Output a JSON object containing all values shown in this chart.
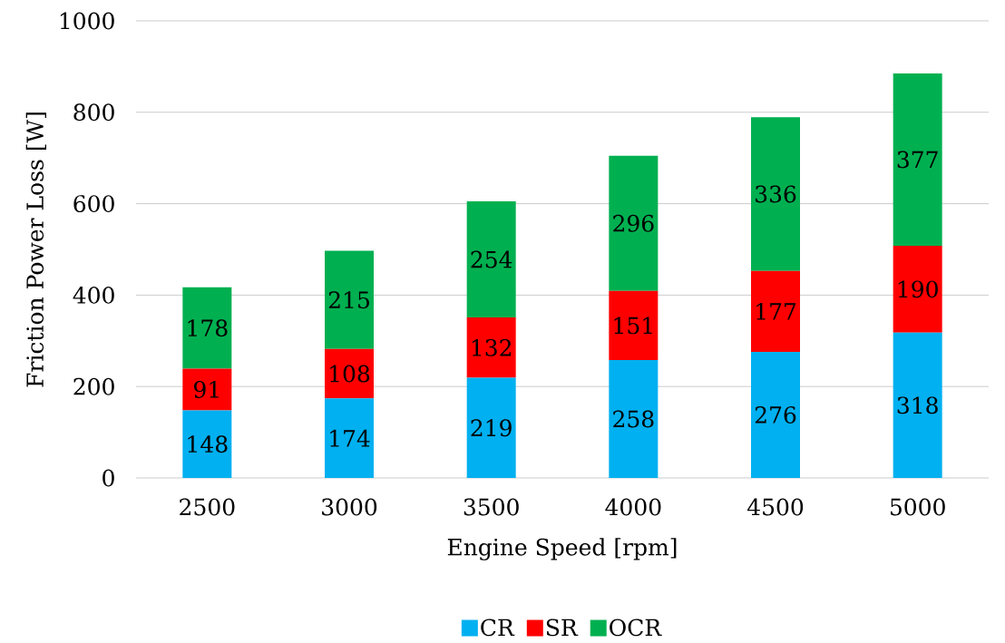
{
  "chart_data": {
    "type": "bar",
    "stacked": true,
    "xlabel": "Engine Speed [rpm]",
    "ylabel": "Friction Power Loss [W]",
    "categories": [
      "2500",
      "3000",
      "3500",
      "4000",
      "4500",
      "5000"
    ],
    "series": [
      {
        "name": "CR",
        "color": "#00b0f0",
        "values": [
          148,
          174,
          219,
          258,
          276,
          318
        ]
      },
      {
        "name": "SR",
        "color": "#ff0000",
        "values": [
          91,
          108,
          132,
          151,
          177,
          190
        ]
      },
      {
        "name": "OCR",
        "color": "#00b050",
        "values": [
          178,
          215,
          254,
          296,
          336,
          377
        ]
      }
    ],
    "ylim": [
      0,
      1000
    ],
    "yticks": [
      0,
      200,
      400,
      600,
      800,
      1000
    ],
    "grid": "y",
    "legend": "bottom",
    "data_labels": true
  }
}
